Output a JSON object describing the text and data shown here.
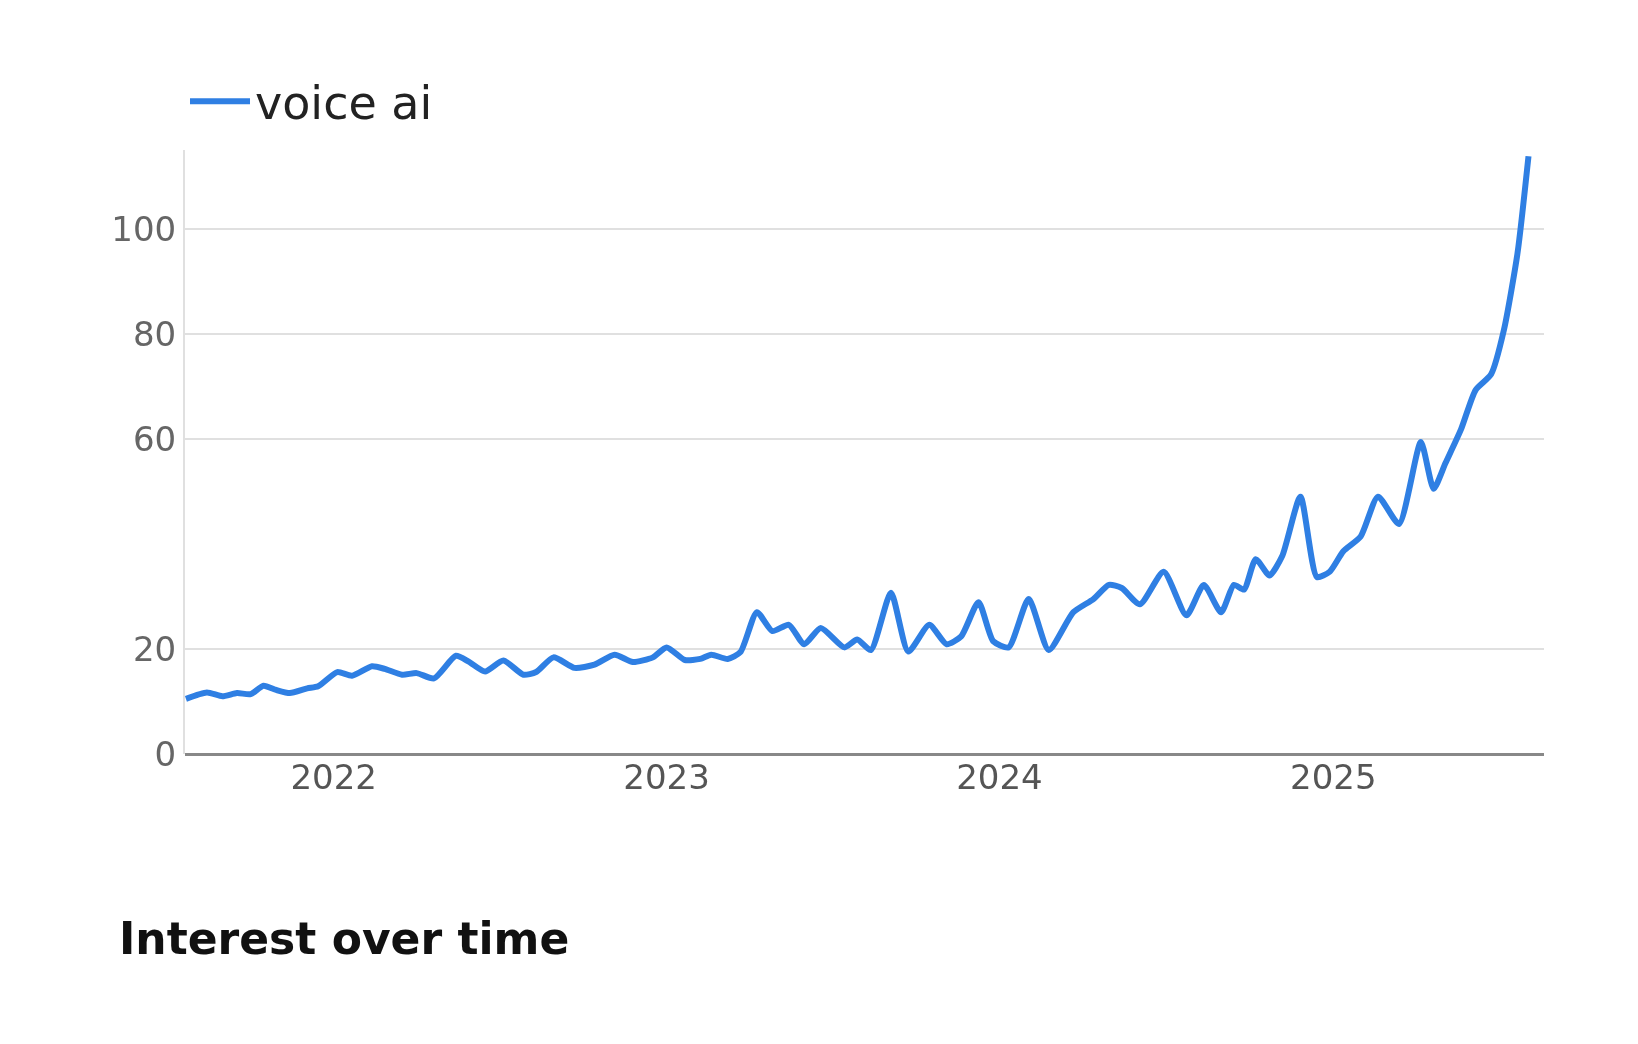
{
  "chart_data": {
    "type": "line",
    "legend": "top left",
    "grid": "y",
    "line_style": "solid",
    "marker": "none",
    "annotations": [
      "Interest over time"
    ],
    "xlim": [
      "2021-07-22",
      "2025-08-20"
    ],
    "xticks": [
      {
        "value": "2022-01-01",
        "label": "2022"
      },
      {
        "value": "2023-01-01",
        "label": "2023"
      },
      {
        "value": "2024-01-01",
        "label": "2024"
      },
      {
        "value": "2025-01-01",
        "label": "2025"
      }
    ],
    "ylim": [
      0,
      115
    ],
    "yticks": [
      0,
      20,
      60,
      80,
      100
    ],
    "x": [
      "2021-07-23",
      "2021-08-15",
      "2021-09-01",
      "2021-09-17",
      "2021-10-02",
      "2021-10-16",
      "2021-10-30",
      "2021-11-14",
      "2021-12-03",
      "2021-12-15",
      "2022-01-05",
      "2022-01-21",
      "2022-02-12",
      "2022-02-26",
      "2022-03-17",
      "2022-04-02",
      "2022-04-21",
      "2022-05-15",
      "2022-05-29",
      "2022-06-16",
      "2022-07-06",
      "2022-07-28",
      "2022-08-11",
      "2022-08-30",
      "2022-09-22",
      "2022-10-14",
      "2022-11-05",
      "2022-11-25",
      "2022-12-17",
      "2023-01-01",
      "2023-01-21",
      "2023-02-07",
      "2023-02-19",
      "2023-03-09",
      "2023-03-23",
      "2023-04-10",
      "2023-04-27",
      "2023-05-15",
      "2023-06-01",
      "2023-06-19",
      "2023-07-15",
      "2023-07-29",
      "2023-08-13",
      "2023-09-04",
      "2023-09-23",
      "2023-10-16",
      "2023-11-04",
      "2023-11-20",
      "2023-12-09",
      "2023-12-25",
      "2024-01-11",
      "2024-02-02",
      "2024-02-24",
      "2024-03-22",
      "2024-04-13",
      "2024-04-30",
      "2024-05-14",
      "2024-06-03",
      "2024-06-29",
      "2024-07-24",
      "2024-08-12",
      "2024-08-31",
      "2024-09-14",
      "2024-09-25",
      "2024-10-08",
      "2024-10-23",
      "2024-11-06",
      "2024-11-26",
      "2024-12-14",
      "2024-12-28",
      "2025-01-12",
      "2025-01-31",
      "2025-02-19",
      "2025-03-14",
      "2025-04-07",
      "2025-04-21",
      "2025-05-04",
      "2025-05-21",
      "2025-06-06",
      "2025-06-23",
      "2025-07-07",
      "2025-07-22",
      "2025-08-03"
    ],
    "series": [
      {
        "name": "voice ai",
        "color": "#2f7fe3",
        "values": [
          10.5,
          11.7,
          11.0,
          11.6,
          11.4,
          13.0,
          12.2,
          11.6,
          12.5,
          12.9,
          15.6,
          14.9,
          16.7,
          16.2,
          15.1,
          15.4,
          14.4,
          18.7,
          17.6,
          15.7,
          17.8,
          15.1,
          15.6,
          18.4,
          16.4,
          17.0,
          18.9,
          17.5,
          18.4,
          20.3,
          17.9,
          18.1,
          18.9,
          18.1,
          19.4,
          27.0,
          23.4,
          24.6,
          20.9,
          24.0,
          20.3,
          21.8,
          19.8,
          30.7,
          19.5,
          24.6,
          20.9,
          22.4,
          28.9,
          21.5,
          20.3,
          29.5,
          19.8,
          27.0,
          29.5,
          32.2,
          31.6,
          28.5,
          34.7,
          26.4,
          32.2,
          27.0,
          32.2,
          31.3,
          37.1,
          34.0,
          37.7,
          49.0,
          33.7,
          34.7,
          38.6,
          41.4,
          49.0,
          43.8,
          59.4,
          50.5,
          55.4,
          61.8,
          69.3,
          72.3,
          80.7,
          95.4,
          113.8
        ]
      }
    ]
  }
}
